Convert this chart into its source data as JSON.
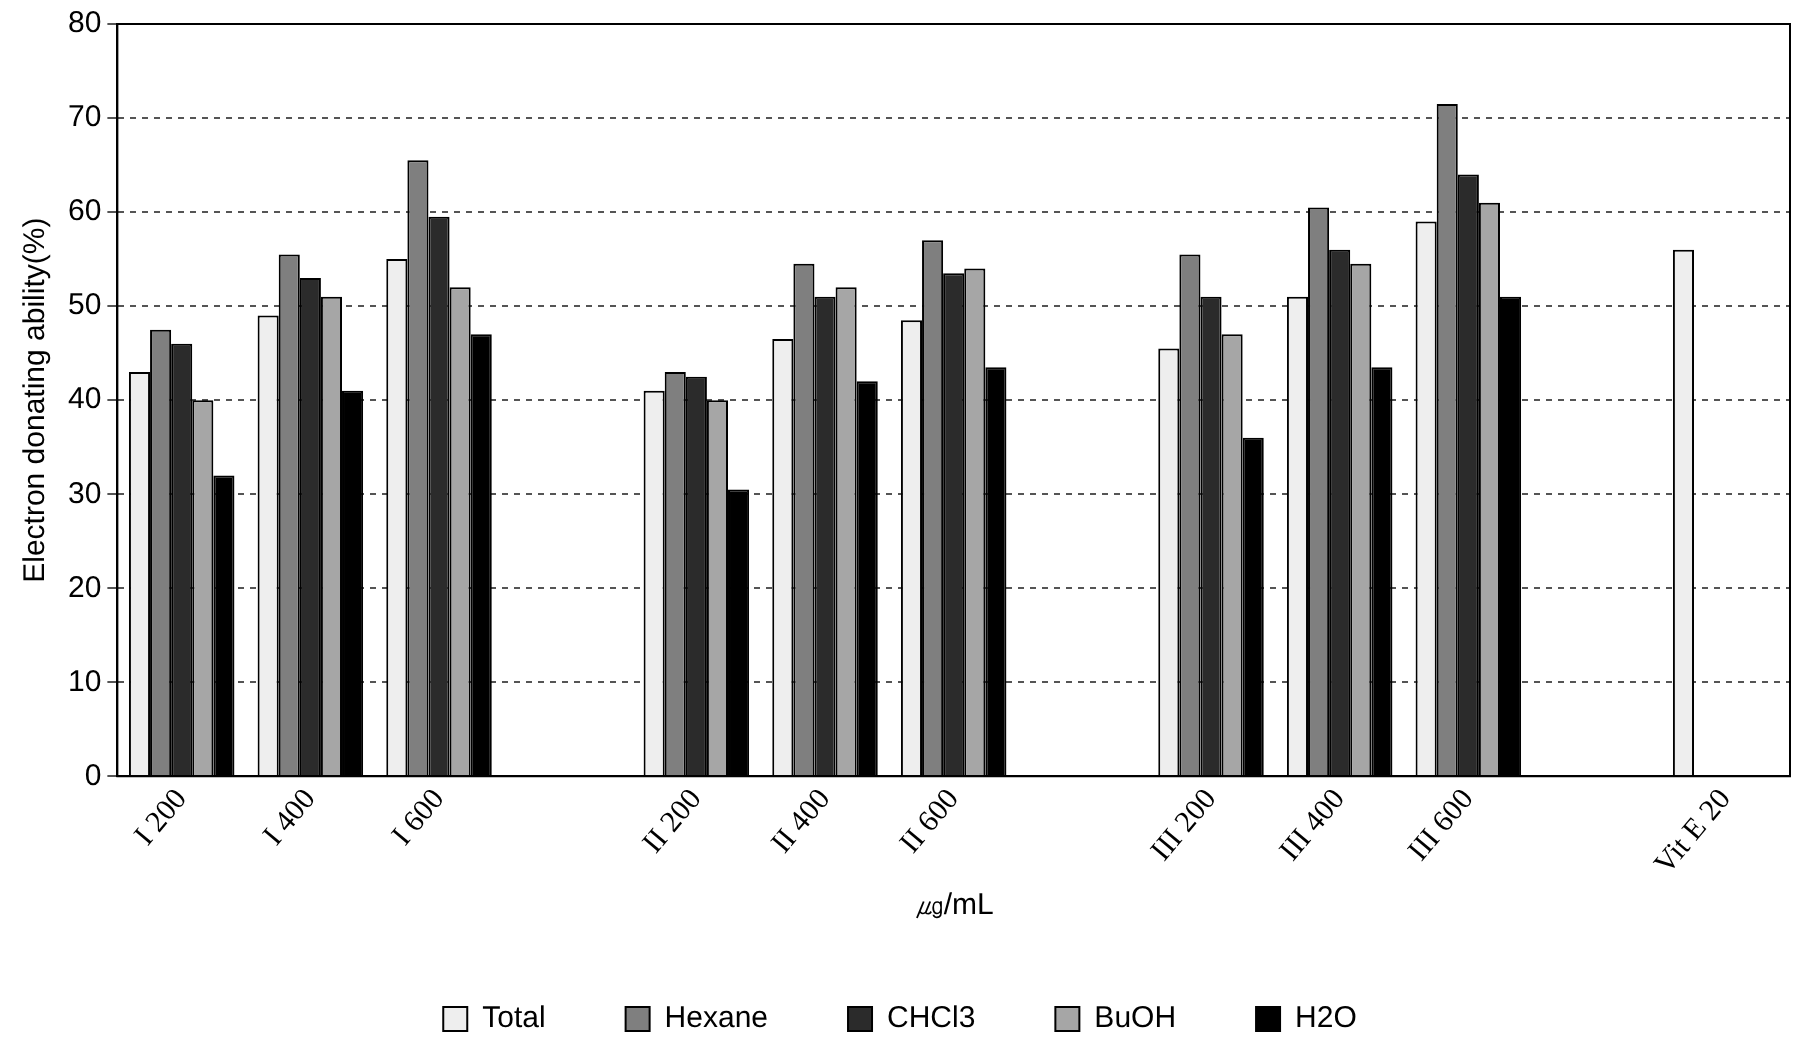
{
  "chart_data": {
    "type": "bar",
    "categories": [
      "I 200",
      "I 400",
      "I 600",
      null,
      "II 200",
      "II 400",
      "II 600",
      null,
      "III 200",
      "III 400",
      "III 600",
      null,
      "Vit E 20"
    ],
    "series": [
      {
        "name": "Total",
        "color": "#eeeeee",
        "values": [
          43,
          49,
          55,
          null,
          41,
          46.5,
          48.5,
          null,
          45.5,
          51,
          59,
          null,
          56
        ]
      },
      {
        "name": "Hexane",
        "color": "#7f7f7f",
        "values": [
          47.5,
          55.5,
          65.5,
          null,
          43,
          54.5,
          57,
          null,
          55.5,
          60.5,
          71.5,
          null,
          null
        ]
      },
      {
        "name": "CHCl3",
        "color": "#2b2b2b",
        "values": [
          46,
          53,
          59.5,
          null,
          42.5,
          51,
          53.5,
          null,
          51,
          56,
          64,
          null,
          null
        ]
      },
      {
        "name": "BuOH",
        "color": "#a6a6a6",
        "values": [
          40,
          51,
          52,
          null,
          40,
          52,
          54,
          null,
          47,
          54.5,
          61,
          null,
          null
        ]
      },
      {
        "name": "H2O",
        "color": "#000000",
        "values": [
          32,
          41,
          47,
          null,
          30.5,
          42,
          43.5,
          null,
          36,
          43.5,
          51,
          null,
          null
        ]
      }
    ],
    "xlabel": "㎍/mL",
    "ylabel": "Electron donating ability(%)",
    "ylim": [
      0,
      80
    ],
    "yticks": [
      0,
      10,
      20,
      30,
      40,
      50,
      60,
      70,
      80
    ],
    "grid": "y",
    "legend": "bottom"
  }
}
